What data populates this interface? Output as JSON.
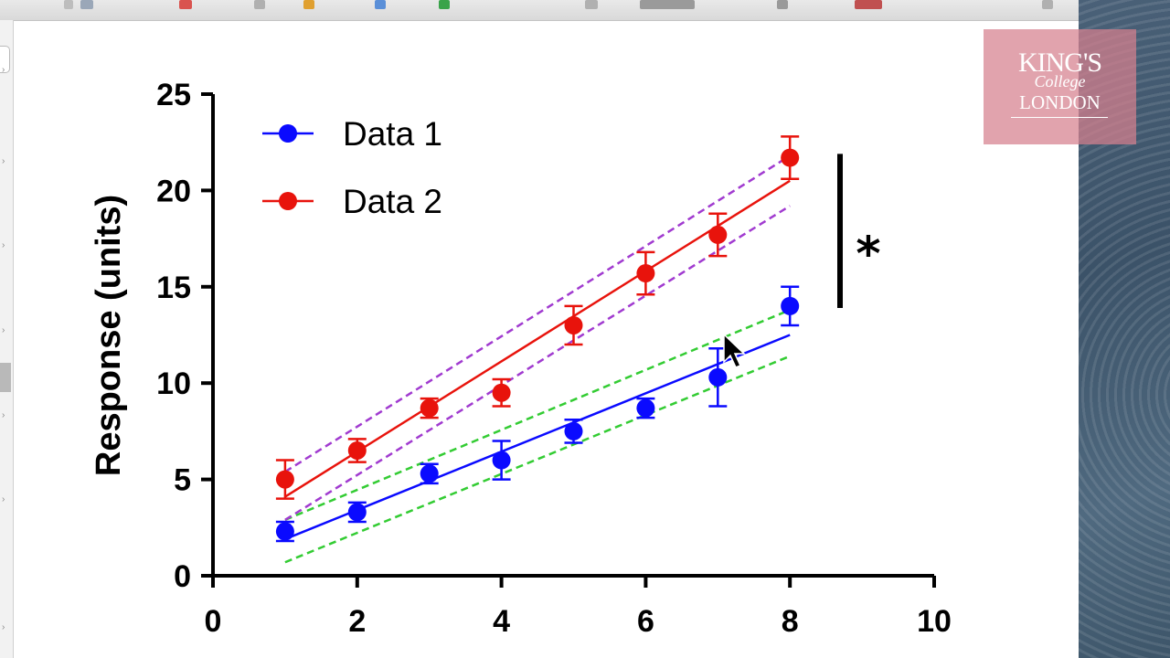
{
  "chart_data": {
    "type": "scatter",
    "xlabel": "",
    "ylabel": "Response (units)",
    "xlim": [
      0,
      10
    ],
    "ylim": [
      0,
      25
    ],
    "xticks": [
      0,
      2,
      4,
      6,
      8,
      10
    ],
    "yticks": [
      0,
      5,
      10,
      15,
      20,
      25
    ],
    "legend_position": "top-left",
    "grid": false,
    "series": [
      {
        "name": "Data 1",
        "color": "#0a0aff",
        "x": [
          1,
          2,
          3,
          4,
          5,
          6,
          7,
          8
        ],
        "y": [
          2.3,
          3.3,
          5.3,
          6.0,
          7.5,
          8.7,
          10.3,
          14.0
        ],
        "yerr": [
          0.5,
          0.5,
          0.5,
          1.0,
          0.6,
          0.5,
          1.5,
          1.0
        ],
        "fit": {
          "x": [
            1,
            8
          ],
          "y": [
            1.9,
            12.5
          ]
        },
        "confidence_band": {
          "color": "#33cc33",
          "x": [
            1,
            8
          ],
          "upper": [
            2.9,
            13.8
          ],
          "lower": [
            0.7,
            11.4
          ]
        }
      },
      {
        "name": "Data 2",
        "color": "#e8130c",
        "x": [
          1,
          2,
          3,
          4,
          5,
          6,
          7,
          8
        ],
        "y": [
          5.0,
          6.5,
          8.7,
          9.5,
          13.0,
          15.7,
          17.7,
          21.7
        ],
        "yerr": [
          1.0,
          0.6,
          0.5,
          0.7,
          1.0,
          1.1,
          1.1,
          1.1
        ],
        "fit": {
          "x": [
            1,
            8
          ],
          "y": [
            4.1,
            20.5
          ]
        },
        "confidence_band": {
          "color": "#a13bd0",
          "x": [
            1,
            8
          ],
          "upper": [
            5.4,
            21.8
          ],
          "lower": [
            2.9,
            19.2
          ]
        }
      }
    ],
    "annotations": [
      {
        "text": "*",
        "type": "significance-bar",
        "y_range": [
          13.9,
          21.9
        ],
        "x": 8.7
      }
    ]
  },
  "logo": {
    "line1": "KING'S",
    "line2": "College",
    "line3": "LONDON",
    "background_color": "#d6808e"
  },
  "colors": {
    "axis": "#000000",
    "right_panel": "#3f566b",
    "toolbar": "#e2e2e2"
  }
}
